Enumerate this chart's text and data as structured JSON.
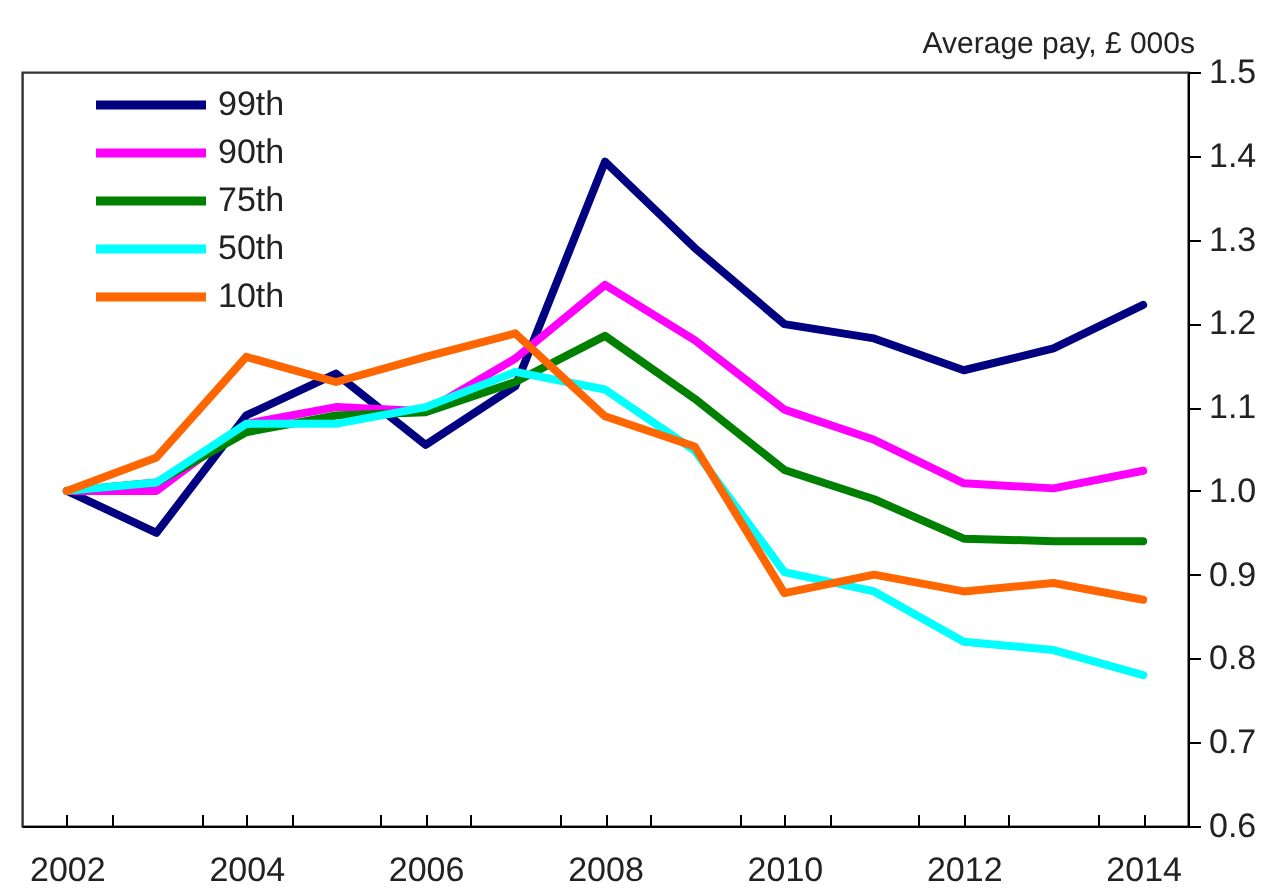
{
  "chart_data": {
    "type": "line",
    "ylabel": "Average pay, £ 000s",
    "x": [
      2002,
      2003,
      2004,
      2005,
      2006,
      2007,
      2008,
      2009,
      2010,
      2011,
      2012,
      2013,
      2014
    ],
    "series": [
      {
        "name": "99th",
        "color": "#000080",
        "values": [
          1.0,
          0.95,
          1.09,
          1.14,
          1.055,
          1.125,
          1.393,
          1.29,
          1.199,
          1.182,
          1.144,
          1.17,
          1.222
        ]
      },
      {
        "name": "90th",
        "color": "#ff00ff",
        "values": [
          1.0,
          1.0,
          1.08,
          1.1,
          1.095,
          1.158,
          1.246,
          1.18,
          1.097,
          1.061,
          1.009,
          1.003,
          1.024
        ]
      },
      {
        "name": "75th",
        "color": "#008000",
        "values": [
          1.0,
          1.01,
          1.07,
          1.09,
          1.094,
          1.13,
          1.185,
          1.11,
          1.025,
          0.99,
          0.943,
          0.94,
          0.94
        ]
      },
      {
        "name": "50th",
        "color": "#00ffff",
        "values": [
          1.0,
          1.01,
          1.08,
          1.08,
          1.1,
          1.142,
          1.121,
          1.048,
          0.903,
          0.88,
          0.82,
          0.81,
          0.78
        ]
      },
      {
        "name": "10th",
        "color": "#ff6600",
        "values": [
          1.0,
          1.04,
          1.16,
          1.13,
          1.16,
          1.188,
          1.089,
          1.053,
          0.878,
          0.9,
          0.88,
          0.89,
          0.87
        ]
      }
    ],
    "xlim": [
      2001.5,
      2014.5
    ],
    "xticks": [
      2002,
      {
        "value": 2002.5,
        "label": null
      },
      {
        "value": 2003.5,
        "label": null
      },
      2004,
      {
        "value": 2004.5,
        "label": null
      },
      {
        "value": 2005.5,
        "label": null
      },
      2006,
      {
        "value": 2006.5,
        "label": null
      },
      {
        "value": 2007.5,
        "label": null
      },
      2008,
      {
        "value": 2008.5,
        "label": null
      },
      {
        "value": 2009.5,
        "label": null
      },
      2010,
      {
        "value": 2010.5,
        "label": null
      },
      {
        "value": 2011.5,
        "label": null
      },
      2012,
      {
        "value": 2012.5,
        "label": null
      },
      {
        "value": 2013.5,
        "label": null
      },
      2014
    ],
    "ylim": [
      0.6,
      1.5
    ],
    "yticks": [
      0.6,
      0.7,
      0.8,
      0.9,
      {
        "value": 1,
        "label": "1.0"
      },
      1.1,
      1.2,
      1.3,
      1.4,
      1.5
    ],
    "grid": false,
    "legend": "top left",
    "marker": "none",
    "line_style": "solid"
  }
}
